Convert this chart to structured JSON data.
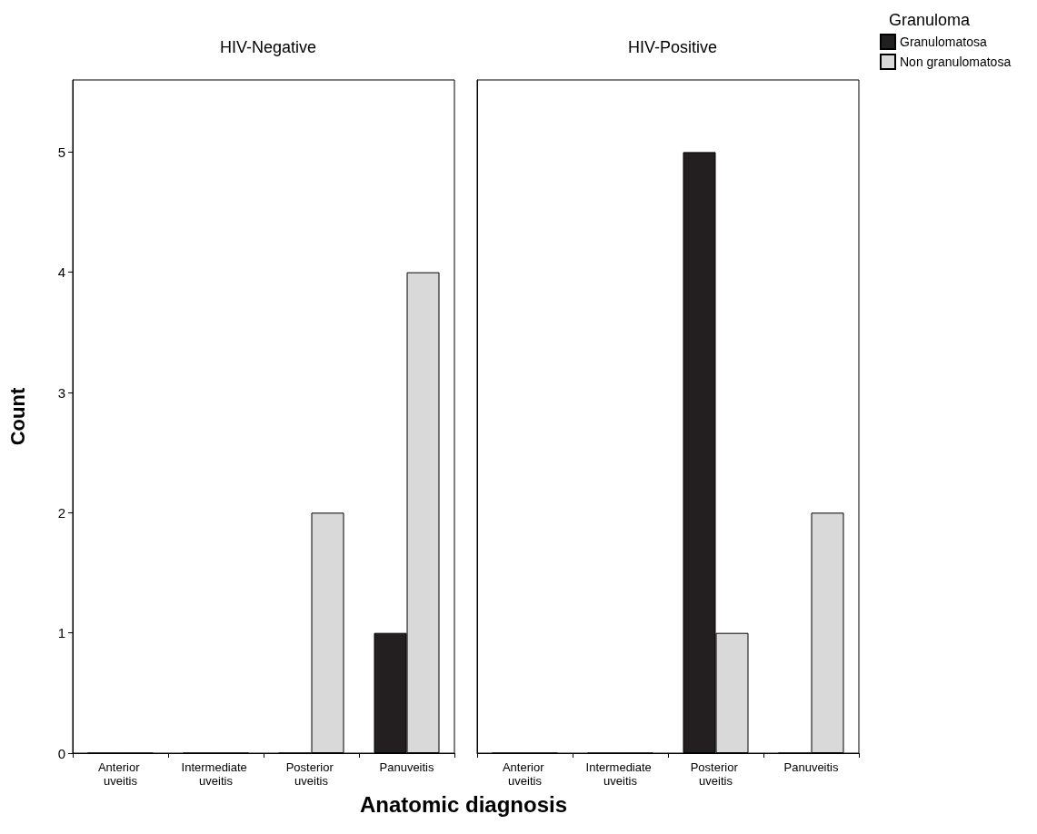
{
  "chart_data": [
    {
      "type": "bar",
      "title": "HIV-Negative",
      "xlabel": "Anatomic diagnosis",
      "ylabel": "Count",
      "categories": [
        "Anterior uveitis",
        "Intermediate uveitis",
        "Posterior uveitis",
        "Panuveitis"
      ],
      "series": [
        {
          "color": "#231f20",
          "values": [
            0,
            0,
            0,
            1
          ]
        },
        {
          "color": "#d9d9d9",
          "values": [
            0,
            0,
            2,
            4
          ]
        }
      ],
      "ylim": [
        0,
        5.6
      ],
      "yticks": [
        0,
        1,
        2,
        3,
        4,
        5
      ],
      "grid": false,
      "legend": false
    },
    {
      "type": "bar",
      "title": "HIV-Positive",
      "legend_title": "Granuloma",
      "categories": [
        "Anterior uveitis",
        "Intermediate uveitis",
        "Posterior uveitis",
        "Panuveitis"
      ],
      "series": [
        {
          "name": "Granulomatosa",
          "color": "#231f20",
          "values": [
            0,
            0,
            5,
            0
          ]
        },
        {
          "name": "Non granulomatosa",
          "color": "#d9d9d9",
          "values": [
            0,
            0,
            1,
            2
          ]
        }
      ],
      "ylim": [
        0,
        5.6
      ],
      "yticks": [
        0,
        1,
        2,
        3,
        4,
        5
      ],
      "grid": false,
      "legend": "top right",
      "tick_labels": "x"
    }
  ]
}
